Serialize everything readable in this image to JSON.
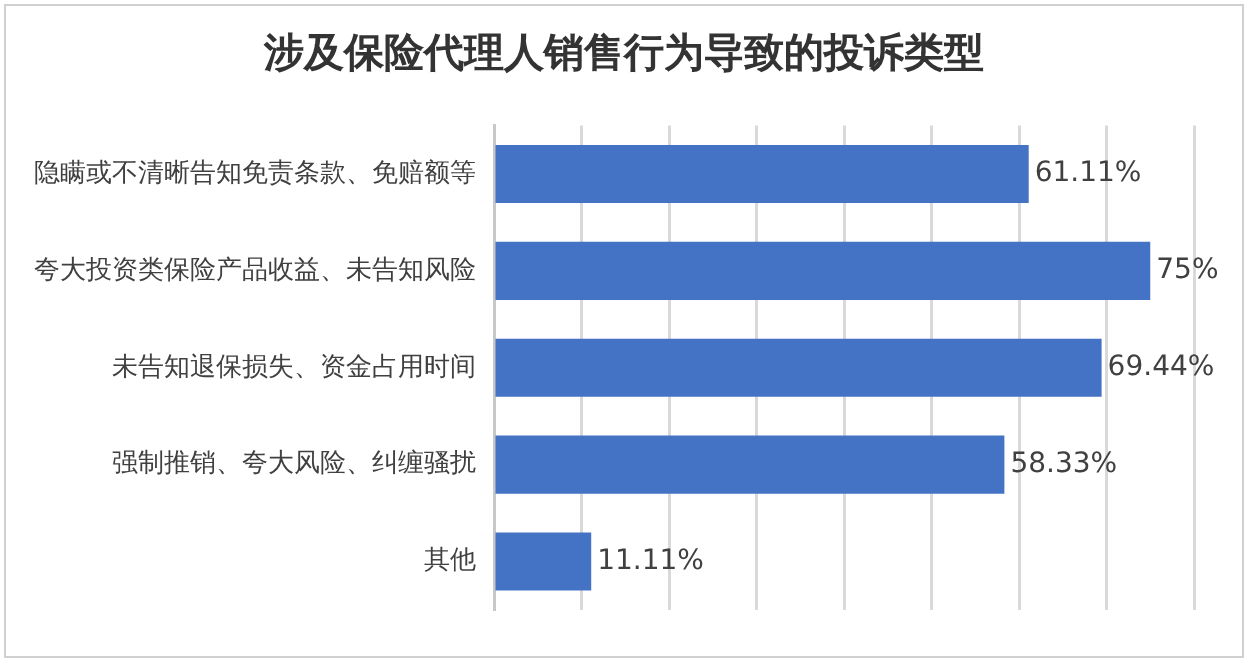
{
  "chart_data": {
    "type": "bar",
    "orientation": "horizontal",
    "title": "涉及保险代理人销售行为导致的投诉类型",
    "categories": [
      "隐瞒或不清晰告知免责条款、免赔额等",
      "夸大投资类保险产品收益、未告知风险",
      "未告知退保损失、资金占用时间",
      "强制推销、夸大风险、纠缠骚扰",
      "其他"
    ],
    "values": [
      61.11,
      75,
      69.44,
      58.33,
      11.11
    ],
    "value_labels": [
      "61.11%",
      "75%",
      "69.44%",
      "58.33%",
      "11.11%"
    ],
    "color": "#4472c4",
    "xlim": [
      0,
      80
    ],
    "xticks": [
      {
        "value": 0,
        "label": null
      },
      {
        "value": 10,
        "label": null
      },
      {
        "value": 20,
        "label": null
      },
      {
        "value": 30,
        "label": null
      },
      {
        "value": 40,
        "label": null
      },
      {
        "value": 50,
        "label": null
      },
      {
        "value": 60,
        "label": null
      },
      {
        "value": 70,
        "label": null
      },
      {
        "value": 80,
        "label": null
      }
    ],
    "tick_labels": "y",
    "grid": "x",
    "legend": false
  }
}
